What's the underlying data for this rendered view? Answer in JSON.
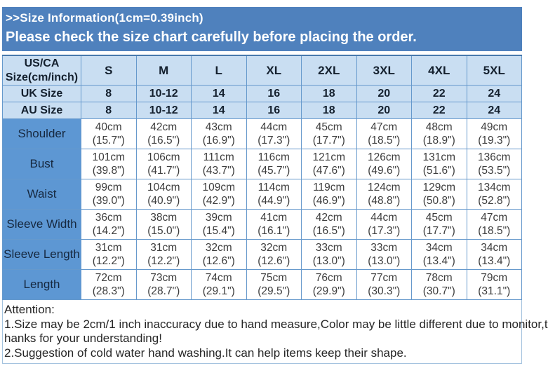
{
  "banner": {
    "line1": ">>Size Information(1cm=0.39inch)",
    "line2": "Please check the size chart carefully before placing the order."
  },
  "table": {
    "corner": "US/CA\nSize(cm/inch)",
    "size_headers": [
      "S",
      "M",
      "L",
      "XL",
      "2XL",
      "3XL",
      "4XL",
      "5XL"
    ],
    "uk": {
      "label": "UK Size",
      "values": [
        "8",
        "10-12",
        "14",
        "16",
        "18",
        "20",
        "22",
        "24"
      ]
    },
    "au": {
      "label": "AU Size",
      "values": [
        "8",
        "10-12",
        "14",
        "16",
        "18",
        "20",
        "22",
        "24"
      ]
    },
    "measurements": [
      {
        "label": "Shoulder",
        "values": [
          "40cm\n(15.7\")",
          "42cm\n(16.5\")",
          "43cm\n(16.9\")",
          "44cm\n(17.3\")",
          "45cm\n(17.7\")",
          "47cm\n(18.5\")",
          "48cm\n(18.9\")",
          "49cm\n(19.3\")"
        ]
      },
      {
        "label": "Bust",
        "values": [
          "101cm\n(39.8\")",
          "106cm\n(41.7\")",
          "111cm\n(43.7\")",
          "116cm\n(45.7\")",
          "121cm\n(47.6\")",
          "126cm\n(49.6\")",
          "131cm\n(51.6\")",
          "136cm\n(53.5\")"
        ]
      },
      {
        "label": "Waist",
        "values": [
          "99cm\n(39.0\")",
          "104cm\n(40.9\")",
          "109cm\n(42.9\")",
          "114cm\n(44.9\")",
          "119cm\n(46.9\")",
          "124cm\n(48.8\")",
          "129cm\n(50.8\")",
          "134cm\n(52.8\")"
        ]
      },
      {
        "label": "Sleeve Width",
        "values": [
          "36cm\n(14.2\")",
          "38cm\n(15.0\")",
          "39cm\n(15.4\")",
          "41cm\n(16.1\")",
          "42cm\n(16.5\")",
          "44cm\n(17.3\")",
          "45cm\n(17.7\")",
          "47cm\n(18.5\")"
        ]
      },
      {
        "label": "Sleeve Length",
        "values": [
          "31cm\n(12.2\")",
          "31cm\n(12.2\")",
          "32cm\n(12.6\")",
          "32cm\n(12.6\")",
          "33cm\n(13.0\")",
          "33cm\n(13.0\")",
          "34cm\n(13.4\")",
          "34cm\n(13.4\")"
        ]
      },
      {
        "label": "Length",
        "values": [
          "72cm\n(28.3\")",
          "73cm\n(28.7\")",
          "74cm\n(29.1\")",
          "75cm\n(29.5\")",
          "76cm\n(29.9\")",
          "77cm\n(30.3\")",
          "78cm\n(30.7\")",
          "79cm\n(31.1\")"
        ]
      }
    ]
  },
  "attention": {
    "lines": [
      "Attention:",
      "1.Size may be 2cm/1 inch inaccuracy due to hand measure,Color may be little different due to monitor,t",
      "hanks for your understanding!",
      "2.Suggestion of cold water hand washing.It can help items keep their shape."
    ]
  },
  "colors": {
    "banner_bg": "#4f81bd",
    "banner_text": "#ffffff",
    "light_row_bg": "#c9def2",
    "label_cell_bg": "#5d97d3",
    "table_border": "#6699cc",
    "attention_border": "#a3c2de",
    "data_text": "#3d3d3d"
  }
}
